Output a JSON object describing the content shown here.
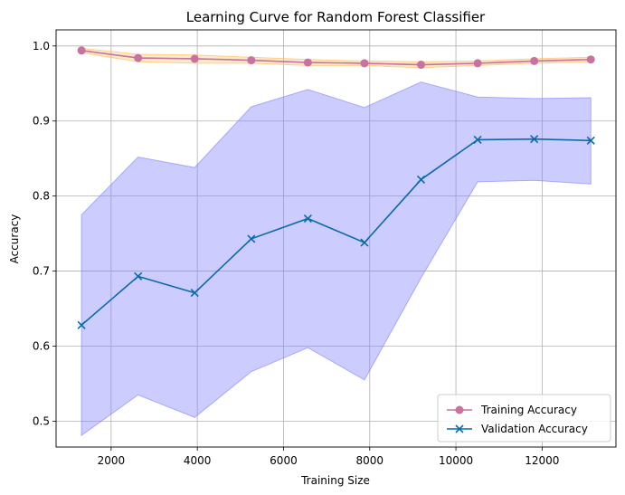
{
  "chart_data": {
    "type": "line",
    "title": "Learning Curve for Random Forest Classifier",
    "xlabel": "Training Size",
    "ylabel": "Accuracy",
    "xlim": [
      723,
      13713
    ],
    "ylim": [
      0.4655,
      1.0215
    ],
    "xticks": [
      2000,
      4000,
      6000,
      8000,
      10000,
      12000
    ],
    "yticks": [
      0.5,
      0.6,
      0.7,
      0.8,
      0.9,
      1.0
    ],
    "xtick_labels": [
      "2000",
      "4000",
      "6000",
      "8000",
      "10000",
      "12000"
    ],
    "ytick_labels": [
      "0.5",
      "0.6",
      "0.7",
      "0.8",
      "0.9",
      "1.0"
    ],
    "grid": true,
    "legend_position": "lower-right",
    "x": [
      1313,
      2626,
      3939,
      5252,
      6565,
      7878,
      9191,
      10504,
      11817,
      13130
    ],
    "series": [
      {
        "name": "Training Accuracy",
        "color": "#c9719f",
        "band_color": "#ffb84d",
        "marker": "circle",
        "values": [
          0.994,
          0.984,
          0.983,
          0.981,
          0.978,
          0.977,
          0.975,
          0.977,
          0.98,
          0.982
        ],
        "lower": [
          0.991,
          0.979,
          0.977,
          0.977,
          0.974,
          0.974,
          0.971,
          0.974,
          0.977,
          0.979
        ],
        "upper": [
          0.997,
          0.989,
          0.988,
          0.985,
          0.982,
          0.98,
          0.979,
          0.98,
          0.983,
          0.985
        ]
      },
      {
        "name": "Validation Accuracy",
        "color": "#0a6aaa",
        "band_color": "#8080ff",
        "marker": "x",
        "values": [
          0.628,
          0.693,
          0.671,
          0.743,
          0.77,
          0.738,
          0.822,
          0.875,
          0.876,
          0.874
        ],
        "lower": [
          0.481,
          0.535,
          0.505,
          0.566,
          0.598,
          0.555,
          0.691,
          0.819,
          0.821,
          0.816
        ],
        "upper": [
          0.775,
          0.852,
          0.838,
          0.919,
          0.942,
          0.918,
          0.952,
          0.932,
          0.93,
          0.931
        ]
      }
    ]
  }
}
